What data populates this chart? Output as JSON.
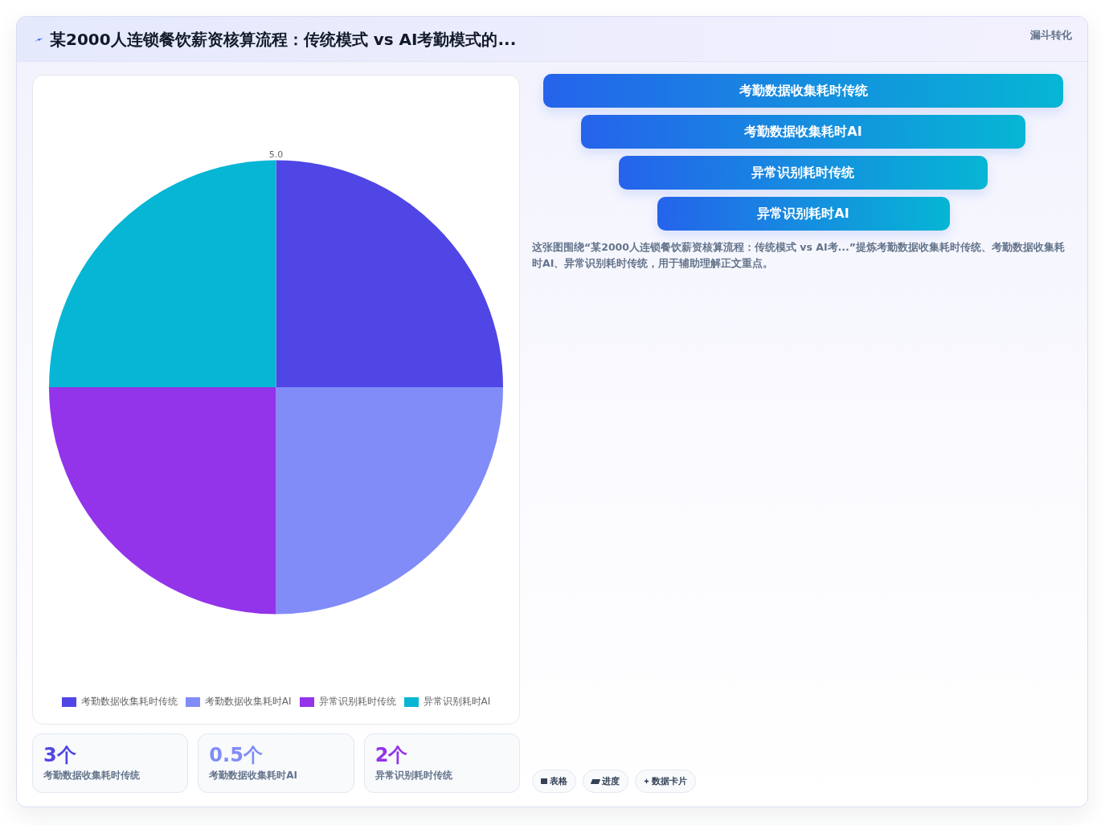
{
  "chart_data": [
    {
      "type": "pie",
      "title": "某2000人连锁餐饮薪资核算流程：传统模式 vs AI考勤模式的...",
      "categories": [
        "考勤数据收集耗时传统",
        "考勤数据收集耗时AI",
        "异常识别耗时传统",
        "异常识别耗时AI"
      ],
      "values": [
        25,
        25,
        25,
        25
      ],
      "colors": [
        "#4f46e5",
        "#818cf8",
        "#9333ea",
        "#06b6d4"
      ],
      "legend": "bottom",
      "annotations": [
        "5.0"
      ]
    },
    {
      "type": "other",
      "categories": [
        "考勤数据收集耗时传统",
        "考勤数据收集耗时AI",
        "异常识别耗时传统"
      ],
      "values": [
        3,
        0.5,
        2
      ],
      "value_labels": [
        "3个",
        "0.5个",
        "2个"
      ]
    },
    {
      "type": "other",
      "title": "漏斗转化",
      "categories": [
        "考勤数据收集耗时传统",
        "考勤数据收集耗时AI",
        "异常识别耗时传统",
        "异常识别耗时AI"
      ],
      "annotations": [
        "这张图围绕“某2000人连锁餐饮薪资核算流程：传统模式 vs AI考...”提炼考勤数据收集耗时传统、考勤数据收集耗时AI、异常识别耗时传统，用于辅助理解正文重点。",
        "表格",
        "进度",
        "数据卡片"
      ]
    }
  ]
}
